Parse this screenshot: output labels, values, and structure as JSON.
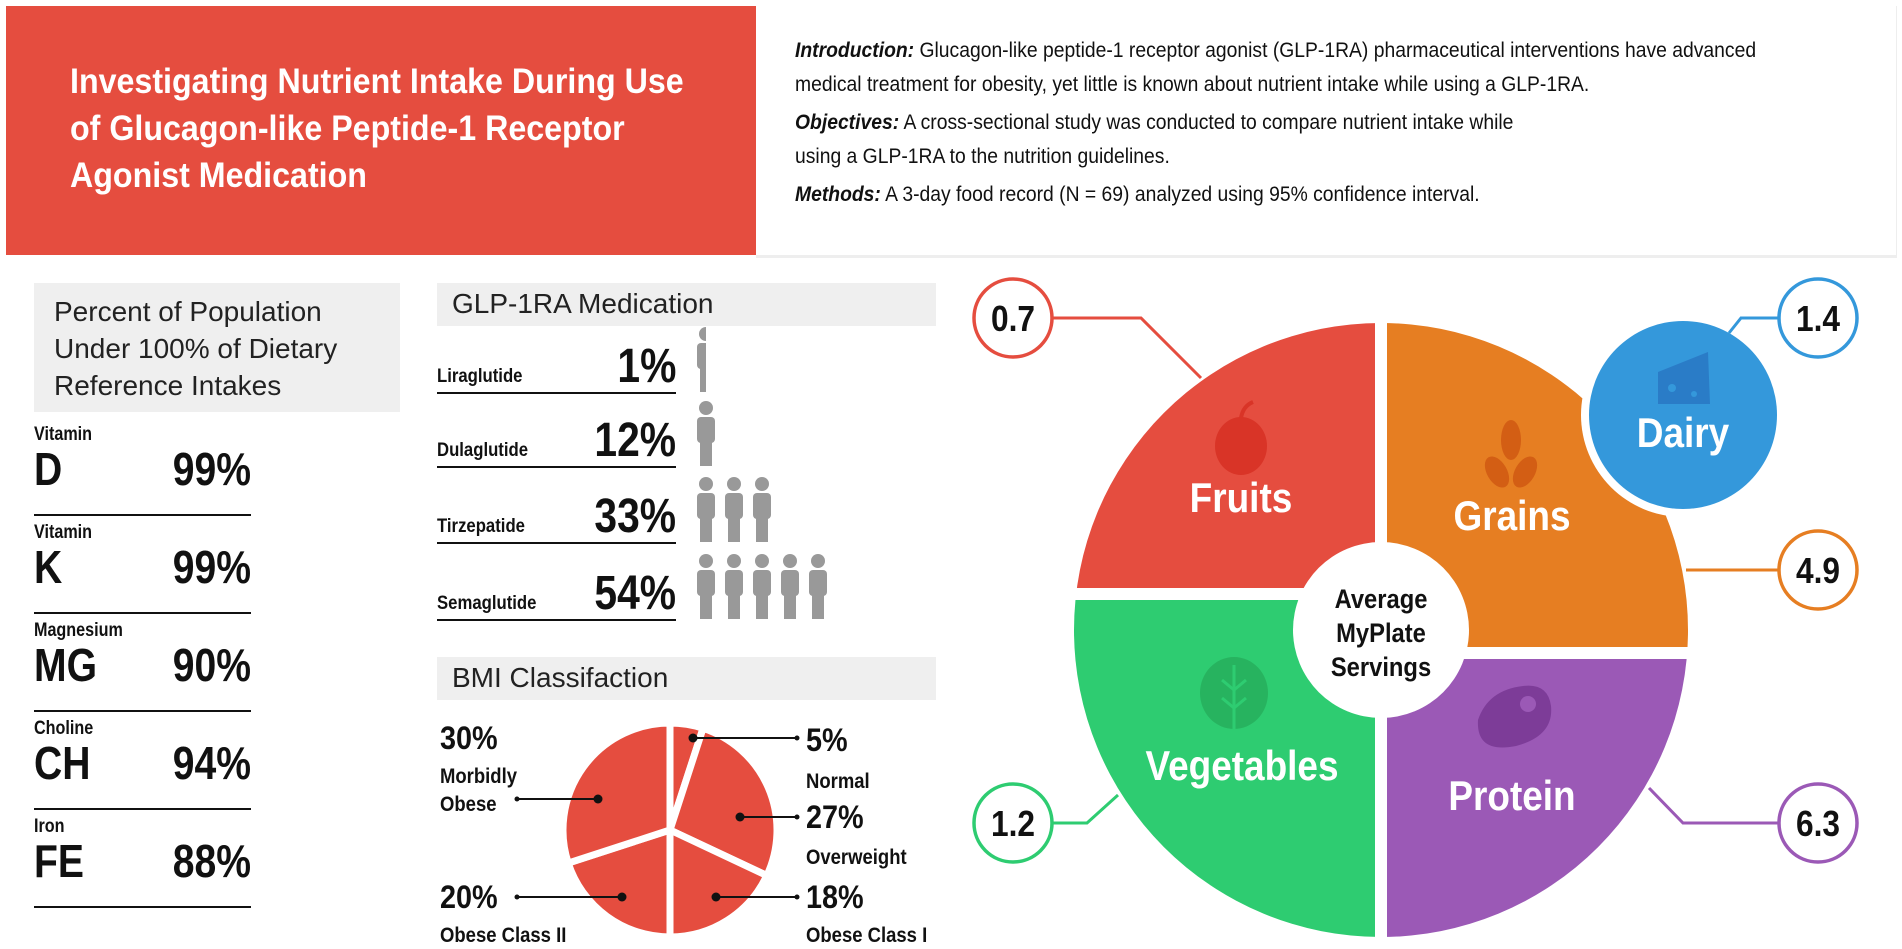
{
  "header": {
    "title": "Investigating Nutrient Intake During Use of Glucagon-like Peptide-1 Receptor Agonist Medication",
    "title_color": "#e54d3f",
    "introduction_label": "Introduction:",
    "introduction_text": " Glucagon-like peptide-1 receptor agonist (GLP-1RA) pharmaceutical interventions have advanced medical treatment for obesity, yet little is known about nutrient intake while using a GLP-1RA.",
    "objectives_label": "Objectives:",
    "objectives_text": " A cross-sectional study was conducted to compare nutrient intake while using a GLP-1RA to the nutrition guidelines.",
    "methods_label": "Methods:",
    "methods_text": " A 3-day food record (N = 69) analyzed using 95% confidence interval."
  },
  "dri": {
    "heading": "Percent of Population Under 100% of Dietary Reference Intakes",
    "items": [
      {
        "label": "Vitamin",
        "code": "D",
        "percent": "99%"
      },
      {
        "label": "Vitamin",
        "code": "K",
        "percent": "99%"
      },
      {
        "label": "Magnesium",
        "code": "MG",
        "percent": "90%"
      },
      {
        "label": "Choline",
        "code": "CH",
        "percent": "94%"
      },
      {
        "label": "Iron",
        "code": "FE",
        "percent": "88%"
      }
    ]
  },
  "medication": {
    "heading": "GLP-1RA Medication",
    "icon": "person-icon",
    "icon_color": "#999999",
    "items": [
      {
        "name": "Liraglutide",
        "percent": "1%",
        "icons": 0.5
      },
      {
        "name": "Dulaglutide",
        "percent": "12%",
        "icons": 1
      },
      {
        "name": "Tirzepatide",
        "percent": "33%",
        "icons": 3
      },
      {
        "name": "Semaglutide",
        "percent": "54%",
        "icons": 5
      }
    ]
  },
  "chart_data": [
    {
      "type": "pie",
      "title": "BMI Classifaction",
      "color": "#e54d3f",
      "categories": [
        "Normal",
        "Overweight",
        "Obese Class I",
        "Obese Class II",
        "Morbidly Obese"
      ],
      "values": [
        5,
        27,
        18,
        20,
        30
      ],
      "labels": [
        "5%",
        "27%",
        "18%",
        "20%",
        "30%"
      ],
      "label_lines": [
        [
          "Normal"
        ],
        [
          "Overweight"
        ],
        [
          "Obese Class I"
        ],
        [
          "Obese Class II"
        ],
        [
          "Morbidly",
          "Obese"
        ]
      ]
    },
    {
      "type": "pie",
      "title": "Average MyPlate Servings",
      "title_lines": [
        "Average",
        "MyPlate",
        "Servings"
      ],
      "categories": [
        "Fruits",
        "Grains",
        "Dairy",
        "Vegetables",
        "Protein"
      ],
      "values": [
        0.7,
        4.9,
        1.4,
        1.2,
        6.3
      ],
      "labels": [
        "0.7",
        "4.9",
        "1.4",
        "1.2",
        "6.3"
      ],
      "colors": {
        "Fruits": "#e54d3f",
        "Grains": "#e67e22",
        "Dairy": "#3498db",
        "Vegetables": "#2ecc71",
        "Protein": "#9b59b6"
      },
      "icons": {
        "Fruits": "apple-icon",
        "Grains": "wheat-icon",
        "Dairy": "cheese-icon",
        "Vegetables": "lettuce-icon",
        "Protein": "steak-icon"
      }
    }
  ]
}
